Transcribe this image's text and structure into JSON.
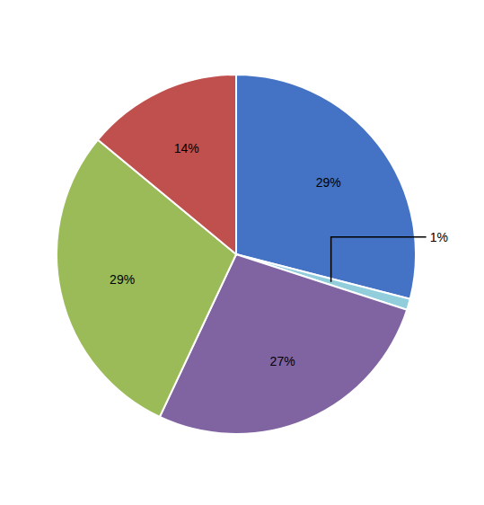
{
  "chart_data": {
    "type": "pie",
    "values": [
      29,
      1,
      27,
      29,
      14
    ],
    "value_labels": [
      "29%",
      "1%",
      "27%",
      "29%",
      "14%"
    ],
    "colors": [
      "#4472C4",
      "#92CDDC",
      "#8064A2",
      "#9BBB59",
      "#C0504D"
    ],
    "data_labels": true
  }
}
